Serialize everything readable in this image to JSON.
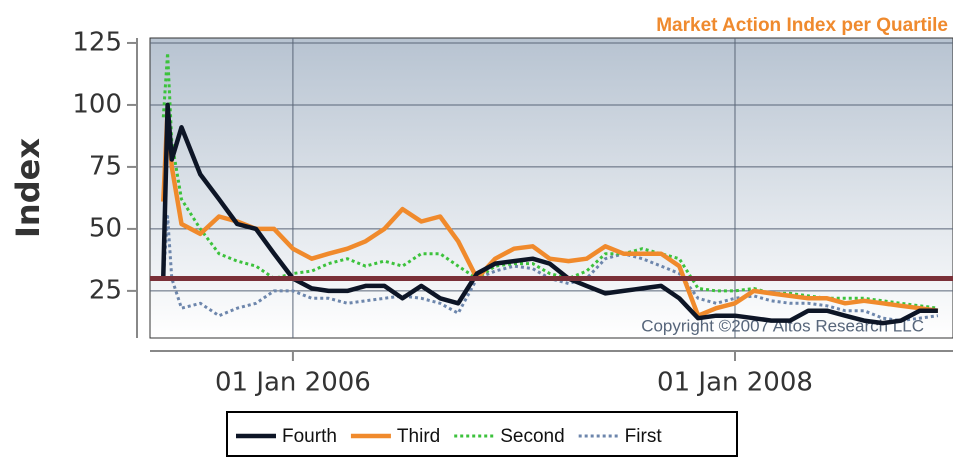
{
  "chart_data": {
    "type": "line",
    "title": "Market Action Index per Quartile",
    "y_label": "Index",
    "annotation": "Copyright ©2007 Altos Research LLC",
    "x": [
      "2005-06-01",
      "2005-06-08",
      "2005-06-15",
      "2005-07-01",
      "2005-08-01",
      "2005-09-01",
      "2005-10-01",
      "2005-11-01",
      "2005-12-01",
      "2006-01-01",
      "2006-02-01",
      "2006-03-01",
      "2006-04-01",
      "2006-05-01",
      "2006-06-01",
      "2006-07-01",
      "2006-08-01",
      "2006-09-01",
      "2006-10-01",
      "2006-11-01",
      "2006-12-01",
      "2007-01-01",
      "2007-02-01",
      "2007-03-01",
      "2007-04-01",
      "2007-05-01",
      "2007-06-01",
      "2007-07-01",
      "2007-08-01",
      "2007-09-01",
      "2007-10-01",
      "2007-11-01",
      "2007-12-01",
      "2008-01-01",
      "2008-02-01",
      "2008-03-01",
      "2008-04-01",
      "2008-05-01",
      "2008-06-01",
      "2008-07-01",
      "2008-08-01",
      "2008-09-01",
      "2008-10-01",
      "2008-11-01",
      "2008-12-01"
    ],
    "series": [
      {
        "name": "Fourth",
        "color": "#0d1526",
        "line_style": "solid",
        "values": [
          31,
          100,
          78,
          91,
          72,
          62,
          52,
          50,
          40,
          30,
          26,
          25,
          25,
          27,
          27,
          22,
          27,
          22,
          20,
          32,
          36,
          37,
          38,
          36,
          30,
          27,
          24,
          25,
          26,
          27,
          22,
          14,
          15,
          15,
          14,
          13,
          13,
          17,
          17,
          15,
          13,
          12,
          13,
          17,
          17
        ]
      },
      {
        "name": "Third",
        "color": "#f08a2c",
        "line_style": "solid",
        "values": [
          61,
          98,
          75,
          52,
          48,
          55,
          53,
          50,
          50,
          42,
          38,
          40,
          42,
          45,
          50,
          58,
          53,
          55,
          45,
          30,
          38,
          42,
          43,
          38,
          37,
          38,
          43,
          40,
          40,
          40,
          35,
          15,
          18,
          20,
          25,
          24,
          23,
          22,
          22,
          20,
          21,
          20,
          19,
          18,
          17
        ]
      },
      {
        "name": "Second",
        "color": "#3cc23c",
        "line_style": "dotted",
        "values": [
          95,
          121,
          85,
          62,
          50,
          40,
          37,
          35,
          30,
          32,
          33,
          36,
          38,
          35,
          37,
          35,
          40,
          40,
          35,
          30,
          35,
          36,
          36,
          32,
          30,
          33,
          40,
          40,
          42,
          40,
          38,
          26,
          25,
          25,
          26,
          24,
          24,
          23,
          22,
          22,
          22,
          21,
          20,
          19,
          18
        ]
      },
      {
        "name": "First",
        "color": "#6d86ac",
        "line_style": "dotted",
        "values": [
          30,
          55,
          30,
          18,
          20,
          15,
          18,
          20,
          25,
          25,
          22,
          22,
          20,
          21,
          22,
          23,
          22,
          20,
          16,
          30,
          33,
          35,
          34,
          30,
          28,
          30,
          38,
          40,
          38,
          35,
          32,
          22,
          20,
          22,
          23,
          21,
          20,
          20,
          19,
          17,
          17,
          14,
          13,
          14,
          15
        ]
      }
    ],
    "reference_line": 30,
    "reference_color": "#7a3038",
    "xlim": [
      "2005-05-10",
      "2008-12-26"
    ],
    "xticks": [
      {
        "value": "2006-01-01",
        "label": "01 Jan 2006"
      },
      {
        "value": "2008-01-01",
        "label": "01 Jan 2008"
      }
    ],
    "ylim": [
      6,
      127
    ],
    "yticks": [
      25,
      50,
      75,
      100,
      125
    ],
    "grid": true
  }
}
